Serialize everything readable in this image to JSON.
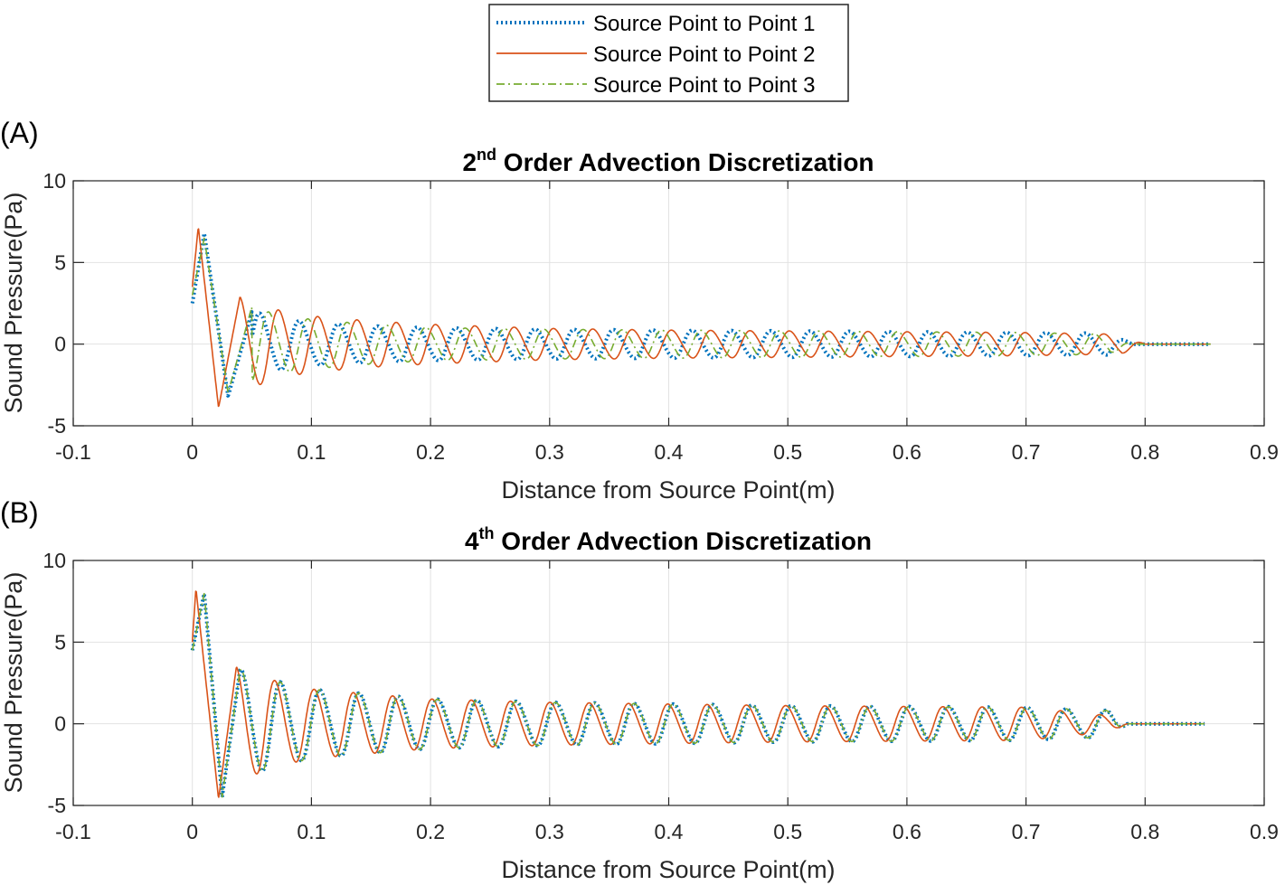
{
  "legend": {
    "placement": "top-center",
    "entries": [
      {
        "label": "Source Point to Point 1",
        "color": "#0072BD",
        "style": "dotted"
      },
      {
        "label": "Source Point to Point 2",
        "color": "#D95319",
        "style": "solid"
      },
      {
        "label": "Source Point to Point 3",
        "color": "#77AC30",
        "style": "dashdot"
      }
    ]
  },
  "chart_data": [
    {
      "type": "line",
      "panel_label": "(A)",
      "title_main": "2",
      "title_sup": "nd",
      "title_rest": " Order Advection Discretization",
      "xlabel": "Distance from Source Point(m)",
      "ylabel": "Sound Pressure(Pa)",
      "xlim": [
        -0.1,
        0.9
      ],
      "ylim": [
        -5,
        10
      ],
      "xticks": [
        "-0.1",
        "0",
        "0.1",
        "0.2",
        "0.3",
        "0.4",
        "0.5",
        "0.6",
        "0.7",
        "0.8",
        "0.9"
      ],
      "yticks": [
        "-5",
        "0",
        "5",
        "10"
      ],
      "grid": true,
      "series": [
        {
          "name": "Source Point to Point 1",
          "x": [
            0.0,
            0.01,
            0.03,
            0.05,
            0.07,
            0.1,
            0.15,
            0.2,
            0.3,
            0.4,
            0.5,
            0.6,
            0.7,
            0.77,
            0.79,
            0.855
          ],
          "y": [
            2.5,
            6.8,
            -3.2,
            2.0,
            1.6,
            1.3,
            1.1,
            1.0,
            0.9,
            0.85,
            0.8,
            0.75,
            0.7,
            0.65,
            0.0,
            0.0
          ]
        },
        {
          "name": "Source Point to Point 2",
          "x": [
            0.0,
            0.005,
            0.022,
            0.04,
            0.07,
            0.1,
            0.15,
            0.2,
            0.3,
            0.4,
            0.5,
            0.6,
            0.7,
            0.78,
            0.8,
            0.855
          ],
          "y": [
            3.5,
            7.2,
            -3.9,
            2.9,
            2.1,
            1.7,
            1.4,
            1.2,
            0.95,
            0.85,
            0.8,
            0.75,
            0.7,
            0.6,
            0.0,
            0.0
          ]
        },
        {
          "name": "Source Point to Point 3",
          "x": [
            0.0,
            0.01,
            0.03,
            0.05,
            0.07,
            0.1,
            0.15,
            0.2,
            0.3,
            0.4,
            0.5,
            0.6,
            0.7,
            0.77,
            0.79,
            0.855
          ],
          "y": [
            3.0,
            6.5,
            -3.0,
            2.3,
            1.8,
            1.5,
            1.2,
            1.0,
            0.9,
            0.85,
            0.8,
            0.75,
            0.7,
            0.6,
            0.0,
            0.0
          ]
        }
      ]
    },
    {
      "type": "line",
      "panel_label": "(B)",
      "title_main": "4",
      "title_sup": "th",
      "title_rest": " Order Advection Discretization",
      "xlabel": "Distance from Source Point(m)",
      "ylabel": "Sound Pressure(Pa)",
      "xlim": [
        -0.1,
        0.9
      ],
      "ylim": [
        -5,
        10
      ],
      "xticks": [
        "-0.1",
        "0",
        "0.1",
        "0.2",
        "0.3",
        "0.4",
        "0.5",
        "0.6",
        "0.7",
        "0.8",
        "0.9"
      ],
      "yticks": [
        "-5",
        "0",
        "5",
        "10"
      ],
      "grid": true,
      "series": [
        {
          "name": "Source Point to Point 1",
          "x": [
            0.0,
            0.01,
            0.025,
            0.04,
            0.07,
            0.1,
            0.15,
            0.2,
            0.3,
            0.4,
            0.5,
            0.6,
            0.7,
            0.77,
            0.785,
            0.85
          ],
          "y": [
            4.5,
            8.0,
            -4.5,
            3.3,
            2.6,
            2.1,
            1.8,
            1.5,
            1.3,
            1.2,
            1.1,
            1.05,
            1.0,
            0.8,
            0.0,
            0.0
          ]
        },
        {
          "name": "Source Point to Point 2",
          "x": [
            0.0,
            0.003,
            0.022,
            0.037,
            0.07,
            0.1,
            0.15,
            0.2,
            0.3,
            0.4,
            0.5,
            0.6,
            0.7,
            0.77,
            0.785,
            0.85
          ],
          "y": [
            5.0,
            8.3,
            -4.6,
            3.5,
            2.6,
            2.1,
            1.8,
            1.5,
            1.3,
            1.2,
            1.1,
            1.05,
            1.0,
            0.5,
            0.0,
            0.0
          ]
        },
        {
          "name": "Source Point to Point 3",
          "x": [
            0.0,
            0.01,
            0.025,
            0.04,
            0.07,
            0.1,
            0.15,
            0.2,
            0.3,
            0.4,
            0.5,
            0.6,
            0.7,
            0.77,
            0.785,
            0.85
          ],
          "y": [
            4.5,
            8.0,
            -4.5,
            3.3,
            2.6,
            2.1,
            1.8,
            1.5,
            1.3,
            1.2,
            1.1,
            1.05,
            1.0,
            0.8,
            0.0,
            0.0
          ]
        }
      ]
    }
  ]
}
